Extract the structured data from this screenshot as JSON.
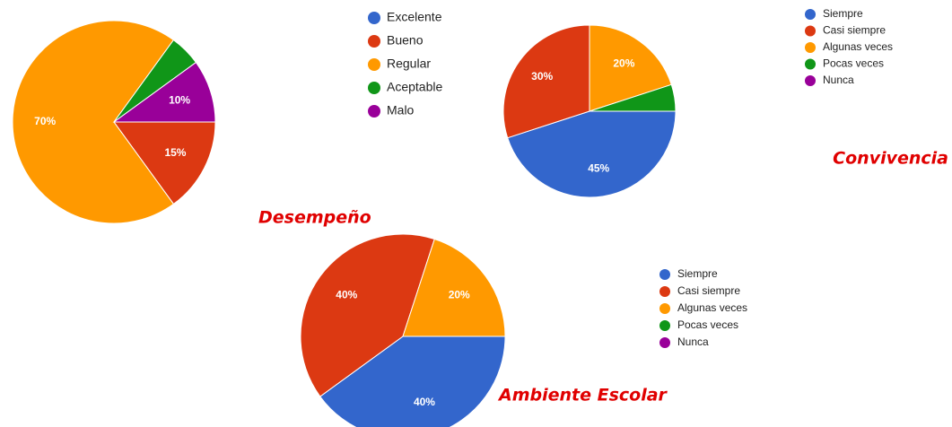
{
  "chart_data": [
    {
      "type": "pie",
      "title": "Desempeño",
      "categories": [
        "Excelente",
        "Bueno",
        "Regular",
        "Aceptable",
        "Malo"
      ],
      "values": [
        0,
        15,
        70,
        5,
        10
      ],
      "value_labels": [
        null,
        "15%",
        "70%",
        null,
        "10%"
      ],
      "colors": [
        "#3366cc",
        "#dc3912",
        "#ff9900",
        "#109618",
        "#990099"
      ]
    },
    {
      "type": "pie",
      "title": "Convivencia",
      "categories": [
        "Siempre",
        "Casi siempre",
        "Algunas veces",
        "Pocas veces",
        "Nunca"
      ],
      "values": [
        45,
        30,
        20,
        5,
        0
      ],
      "value_labels": [
        "45%",
        "30%",
        "20%",
        null,
        null
      ],
      "colors": [
        "#3366cc",
        "#dc3912",
        "#ff9900",
        "#109618",
        "#990099"
      ]
    },
    {
      "type": "pie",
      "title": "Ambiente Escolar",
      "categories": [
        "Siempre",
        "Casi siempre",
        "Algunas veces",
        "Pocas veces",
        "Nunca"
      ],
      "values": [
        40,
        40,
        20,
        0,
        0
      ],
      "value_labels": [
        "40%",
        "40%",
        "20%",
        null,
        null
      ],
      "colors": [
        "#3366cc",
        "#dc3912",
        "#ff9900",
        "#109618",
        "#990099"
      ]
    }
  ]
}
